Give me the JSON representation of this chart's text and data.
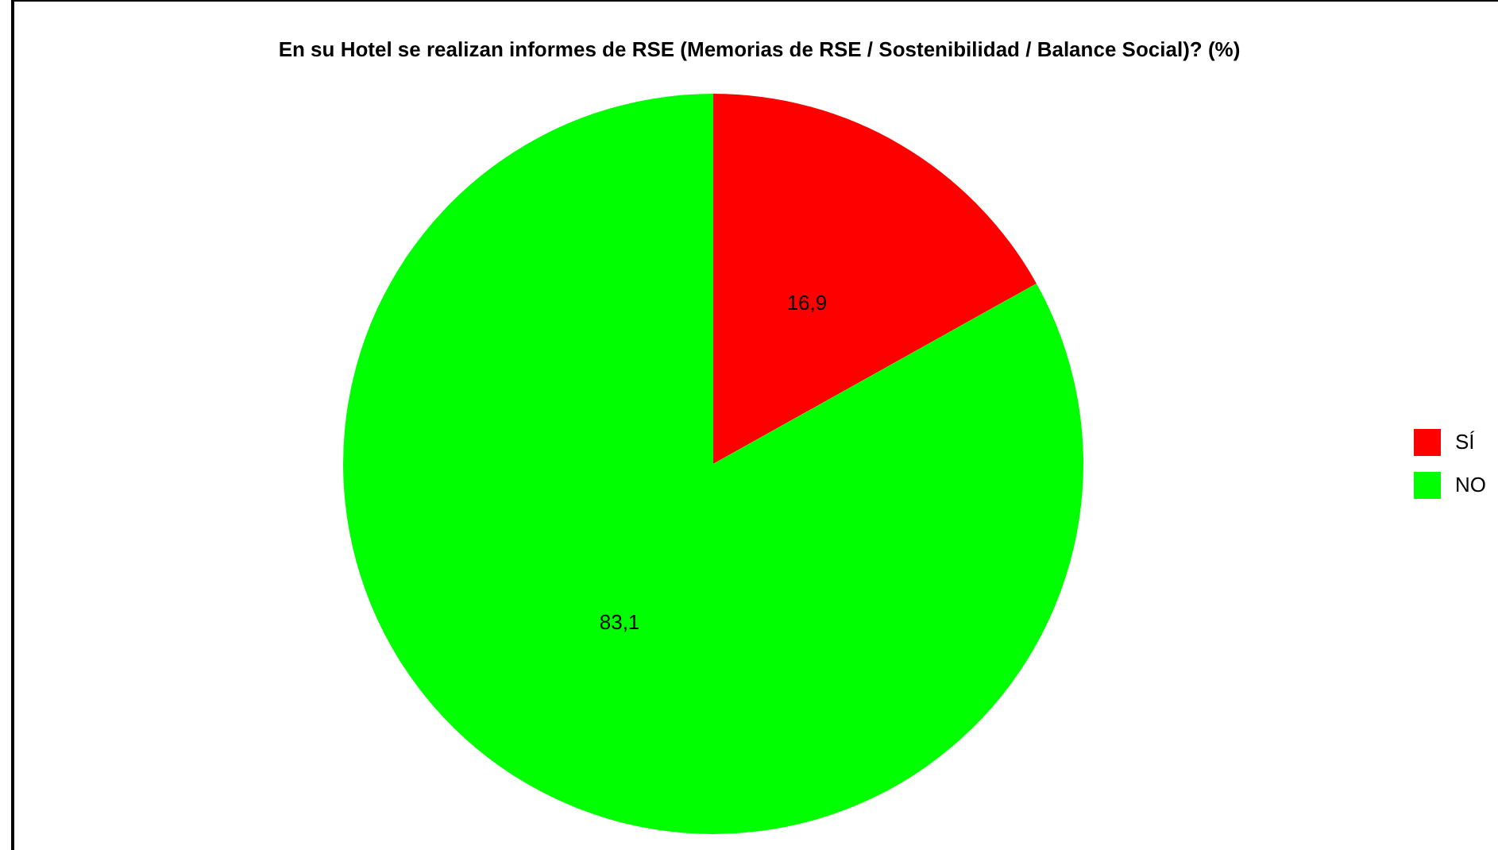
{
  "chart_data": {
    "type": "pie",
    "title": "En su Hotel se realizan informes de RSE (Memorias de RSE / Sostenibilidad / Balance Social)? (%)",
    "categories": [
      "SÍ",
      "NO"
    ],
    "values": [
      16.9,
      83.1
    ],
    "value_labels": [
      "16,9",
      "83,1"
    ],
    "colors": [
      "#ff0000",
      "#00ff00"
    ],
    "legend": "right"
  }
}
